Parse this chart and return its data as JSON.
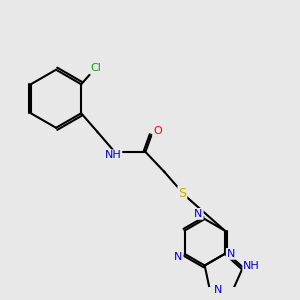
{
  "background_color": "#e8e8e8",
  "atom_colors": {
    "C": "#000000",
    "N": "#0000cd",
    "O": "#ff0000",
    "S": "#ccaa00",
    "Cl": "#00aa00",
    "H": "#555555"
  },
  "lw": 1.5,
  "fs": 8
}
